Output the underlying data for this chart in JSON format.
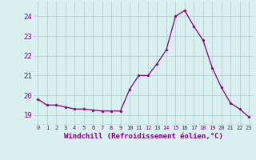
{
  "x": [
    0,
    1,
    2,
    3,
    4,
    5,
    6,
    7,
    8,
    9,
    10,
    11,
    12,
    13,
    14,
    15,
    16,
    17,
    18,
    19,
    20,
    21,
    22,
    23
  ],
  "y": [
    19.8,
    19.5,
    19.5,
    19.4,
    19.3,
    19.3,
    19.25,
    19.2,
    19.2,
    19.2,
    20.3,
    21.0,
    21.0,
    21.6,
    22.3,
    24.0,
    24.3,
    23.5,
    22.8,
    21.4,
    20.4,
    19.6,
    19.3,
    18.9
  ],
  "line_color": "#800080",
  "marker": "*",
  "marker_size": 2.5,
  "bg_color": "#d8f0f0",
  "grid_color": "#b8d0d0",
  "xlabel": "Windchill (Refroidissement éolien,°C)",
  "xlabel_color": "#800080",
  "tick_color": "#800080",
  "ylim": [
    18.5,
    24.75
  ],
  "xlim": [
    -0.5,
    23.5
  ],
  "yticks": [
    19,
    20,
    21,
    22,
    23,
    24
  ],
  "xticks": [
    0,
    1,
    2,
    3,
    4,
    5,
    6,
    7,
    8,
    9,
    10,
    11,
    12,
    13,
    14,
    15,
    16,
    17,
    18,
    19,
    20,
    21,
    22,
    23
  ],
  "ytick_fontsize": 6.5,
  "xtick_fontsize": 5.0,
  "xlabel_fontsize": 6.5
}
